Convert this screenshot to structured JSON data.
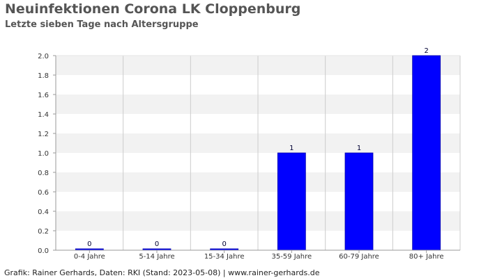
{
  "header": {
    "title": "Neuinfektionen Corona LK Cloppenburg",
    "subtitle": "Letzte sieben Tage nach Altersgruppe"
  },
  "footer": {
    "credit": "Grafik: Rainer Gerhards, Daten: RKI (Stand: 2023-05-08) | www.rainer-gerhards.de"
  },
  "colors": {
    "bar": "#0000ff",
    "band": "#f2f2f2",
    "grid": "#cccccc",
    "axis": "#999999"
  },
  "chart_data": {
    "type": "bar",
    "categories": [
      "0-4 Jahre",
      "5-14 Jahre",
      "15-34 Jahre",
      "35-59 Jahre",
      "60-79 Jahre",
      "80+ Jahre"
    ],
    "values": [
      0,
      0,
      0,
      1,
      1,
      2
    ],
    "data_labels": [
      "0",
      "0",
      "0",
      "1",
      "1",
      "2"
    ],
    "y_ticks": [
      "0.0",
      "0.2",
      "0.4",
      "0.6",
      "0.8",
      "1.0",
      "1.2",
      "1.4",
      "1.6",
      "1.8",
      "2.0"
    ],
    "ylim": [
      0,
      2
    ],
    "grid": true,
    "legend": "none"
  }
}
